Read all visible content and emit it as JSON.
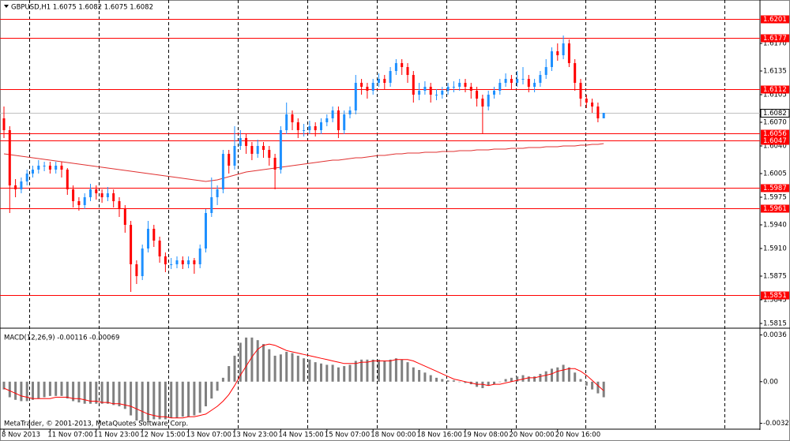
{
  "chart_data": [
    {
      "type": "candlestick",
      "title": "GBPUSD,H1  1.6075 1.6082 1.6075 1.6082",
      "categories": [
        "8 Nov 2013",
        null,
        null,
        null,
        null,
        null,
        null,
        null,
        "11 Nov 07:00",
        null,
        null,
        null,
        null,
        null,
        null,
        null,
        "11 Nov 23:00",
        null,
        null,
        null,
        null,
        null,
        null,
        null,
        "12 Nov 15:00",
        null,
        null,
        null,
        null,
        null,
        null,
        null,
        "13 Nov 07:00",
        null,
        null,
        null,
        null,
        null,
        null,
        null,
        "13 Nov 23:00",
        null,
        null,
        null,
        null,
        null,
        null,
        null,
        "14 Nov 15:00",
        null,
        null,
        null,
        null,
        null,
        null,
        null,
        "15 Nov 07:00",
        null,
        null,
        null,
        null,
        null,
        null,
        null,
        "18 Nov 00:00",
        null,
        null,
        null,
        null,
        null,
        null,
        null,
        "18 Nov 16:00",
        null,
        null,
        null,
        null,
        null,
        null,
        null,
        "19 Nov 08:00",
        null,
        null,
        null,
        null,
        null,
        null,
        null,
        "20 Nov 00:00",
        null,
        null,
        null,
        null,
        null,
        null,
        null,
        "20 Nov 16:00",
        null,
        null,
        null,
        null,
        null,
        null,
        null,
        null
      ],
      "open": [
        1.6075,
        1.606,
        1.599,
        1.5985,
        1.5995,
        1.6005,
        1.601,
        1.6015,
        1.6015,
        1.601,
        1.6015,
        1.601,
        1.5985,
        1.597,
        1.5965,
        1.5975,
        1.5985,
        1.598,
        1.5975,
        1.598,
        1.597,
        1.596,
        1.594,
        1.589,
        1.5875,
        1.591,
        1.5935,
        1.592,
        1.59,
        1.589,
        1.589,
        1.5895,
        1.589,
        1.5895,
        1.589,
        1.591,
        1.5955,
        1.5975,
        1.5985,
        1.603,
        1.6015,
        1.604,
        1.605,
        1.604,
        1.603,
        1.604,
        1.6035,
        1.6025,
        1.601,
        1.606,
        1.608,
        1.607,
        1.606,
        1.606,
        1.6065,
        1.606,
        1.607,
        1.6075,
        1.6085,
        1.606,
        1.608,
        1.6085,
        1.612,
        1.6115,
        1.611,
        1.612,
        1.6125,
        1.612,
        1.6135,
        1.6145,
        1.614,
        1.613,
        1.6105,
        1.611,
        1.6115,
        1.6105,
        1.6105,
        1.611,
        1.6115,
        1.6115,
        1.612,
        1.6115,
        1.611,
        1.61,
        1.609,
        1.6105,
        1.611,
        1.612,
        1.6125,
        1.612,
        1.6125,
        1.6125,
        1.6115,
        1.612,
        1.613,
        1.614,
        1.616,
        1.6155,
        1.617,
        1.6145,
        1.612,
        1.61,
        1.6095,
        1.609,
        1.6075
      ],
      "high": [
        1.609,
        1.6065,
        1.5998,
        1.6,
        1.601,
        1.6015,
        1.6022,
        1.602,
        1.602,
        1.602,
        1.602,
        1.6012,
        1.599,
        1.5975,
        1.598,
        1.5992,
        1.599,
        1.5985,
        1.5988,
        1.5985,
        1.5975,
        1.5965,
        1.5945,
        1.5895,
        1.5915,
        1.5945,
        1.594,
        1.5925,
        1.5905,
        1.5898,
        1.59,
        1.59,
        1.59,
        1.5898,
        1.5915,
        1.596,
        1.6,
        1.599,
        1.6035,
        1.6035,
        1.6065,
        1.606,
        1.6055,
        1.6045,
        1.6048,
        1.6045,
        1.604,
        1.603,
        1.6065,
        1.6095,
        1.6085,
        1.6075,
        1.6068,
        1.6072,
        1.607,
        1.6075,
        1.608,
        1.609,
        1.609,
        1.6085,
        1.609,
        1.613,
        1.6125,
        1.612,
        1.6125,
        1.6132,
        1.613,
        1.614,
        1.615,
        1.615,
        1.6145,
        1.6135,
        1.612,
        1.6122,
        1.612,
        1.6112,
        1.6115,
        1.612,
        1.6122,
        1.6125,
        1.6125,
        1.612,
        1.6115,
        1.6105,
        1.611,
        1.6115,
        1.6125,
        1.6132,
        1.613,
        1.6135,
        1.614,
        1.613,
        1.6125,
        1.6135,
        1.615,
        1.6165,
        1.617,
        1.618,
        1.6175,
        1.615,
        1.6125,
        1.6105,
        1.61,
        1.6095,
        1.6082
      ],
      "low": [
        1.605,
        1.5955,
        1.5975,
        1.598,
        1.599,
        1.6,
        1.6005,
        1.6008,
        1.6005,
        1.6005,
        1.6,
        1.5978,
        1.5962,
        1.5958,
        1.596,
        1.597,
        1.5972,
        1.5968,
        1.597,
        1.5962,
        1.595,
        1.593,
        1.5855,
        1.5865,
        1.587,
        1.5905,
        1.5912,
        1.5892,
        1.588,
        1.5884,
        1.5885,
        1.5884,
        1.5885,
        1.5878,
        1.5885,
        1.5905,
        1.595,
        1.5965,
        1.598,
        1.6005,
        1.601,
        1.6035,
        1.603,
        1.6022,
        1.6025,
        1.6025,
        1.6015,
        1.5985,
        1.6005,
        1.6055,
        1.606,
        1.605,
        1.6052,
        1.6055,
        1.6052,
        1.6055,
        1.6065,
        1.607,
        1.605,
        1.6055,
        1.6075,
        1.608,
        1.6105,
        1.61,
        1.6105,
        1.6115,
        1.6112,
        1.6115,
        1.613,
        1.613,
        1.612,
        1.6095,
        1.6098,
        1.6105,
        1.6095,
        1.6098,
        1.61,
        1.6105,
        1.6108,
        1.611,
        1.6108,
        1.61,
        1.609,
        1.6055,
        1.6085,
        1.61,
        1.6105,
        1.6115,
        1.6112,
        1.6115,
        1.6118,
        1.6108,
        1.6108,
        1.6115,
        1.6125,
        1.6135,
        1.6148,
        1.615,
        1.614,
        1.611,
        1.609,
        1.6088,
        1.6082,
        1.607,
        1.6075
      ],
      "close": [
        1.606,
        1.599,
        1.5985,
        1.5995,
        1.6005,
        1.601,
        1.6015,
        1.6015,
        1.601,
        1.6015,
        1.601,
        1.5985,
        1.597,
        1.5965,
        1.5975,
        1.5985,
        1.598,
        1.5975,
        1.598,
        1.597,
        1.596,
        1.594,
        1.589,
        1.5875,
        1.591,
        1.5935,
        1.592,
        1.59,
        1.589,
        1.589,
        1.5895,
        1.589,
        1.5895,
        1.589,
        1.591,
        1.5955,
        1.5975,
        1.5985,
        1.603,
        1.6015,
        1.604,
        1.605,
        1.604,
        1.603,
        1.604,
        1.6035,
        1.6025,
        1.601,
        1.606,
        1.608,
        1.607,
        1.606,
        1.606,
        1.6065,
        1.606,
        1.607,
        1.6075,
        1.6085,
        1.606,
        1.608,
        1.6085,
        1.612,
        1.6115,
        1.611,
        1.612,
        1.6125,
        1.612,
        1.6135,
        1.6145,
        1.614,
        1.613,
        1.6105,
        1.611,
        1.6115,
        1.6105,
        1.6105,
        1.611,
        1.6115,
        1.6115,
        1.612,
        1.6115,
        1.611,
        1.61,
        1.609,
        1.6105,
        1.611,
        1.612,
        1.6125,
        1.612,
        1.6125,
        1.6125,
        1.6115,
        1.612,
        1.613,
        1.614,
        1.616,
        1.6155,
        1.617,
        1.6145,
        1.612,
        1.61,
        1.6095,
        1.609,
        1.6075,
        1.6082
      ],
      "up_color": "#1e90ff",
      "down_color": "#ff0000",
      "ma": {
        "color": "#e03030",
        "values": [
          1.603,
          1.6029,
          1.6028,
          1.6027,
          1.6026,
          1.6025,
          1.6024,
          1.6023,
          1.6022,
          1.6021,
          1.602,
          1.6019,
          1.6018,
          1.6017,
          1.6016,
          1.6015,
          1.6014,
          1.6013,
          1.6012,
          1.6011,
          1.601,
          1.6009,
          1.6008,
          1.6007,
          1.6006,
          1.6005,
          1.6004,
          1.6003,
          1.6002,
          1.6001,
          1.6,
          1.5999,
          1.5998,
          1.5997,
          1.5996,
          1.5995,
          1.5996,
          1.5997,
          1.5999,
          1.6001,
          1.6003,
          1.6005,
          1.6007,
          1.6008,
          1.6009,
          1.601,
          1.6011,
          1.6012,
          1.6013,
          1.6014,
          1.6015,
          1.6016,
          1.6017,
          1.6018,
          1.6019,
          1.602,
          1.6021,
          1.6022,
          1.6022,
          1.6023,
          1.6024,
          1.6025,
          1.6025,
          1.6026,
          1.6027,
          1.6028,
          1.6028,
          1.6029,
          1.603,
          1.603,
          1.6031,
          1.6031,
          1.6031,
          1.6032,
          1.6032,
          1.6032,
          1.6033,
          1.6033,
          1.6033,
          1.6034,
          1.6034,
          1.6034,
          1.6035,
          1.6035,
          1.6035,
          1.6036,
          1.6036,
          1.6036,
          1.6037,
          1.6037,
          1.6037,
          1.6038,
          1.6038,
          1.6038,
          1.6039,
          1.6039,
          1.6039,
          1.604,
          1.604,
          1.604,
          1.6041,
          1.6041,
          1.6042,
          1.6042,
          1.6043
        ]
      },
      "levels": {
        "color": "#ff0000",
        "values": [
          1.6201,
          1.6177,
          1.6112,
          1.6056,
          1.6047,
          1.5987,
          1.5961,
          1.5851
        ]
      },
      "current": 1.6082,
      "ylim": [
        1.581,
        1.622
      ],
      "yticks": [
        {
          "value": 1.617,
          "label": "1.6170"
        },
        1.6135,
        1.6105,
        {
          "value": 1.607,
          "label": "1.6070"
        },
        {
          "value": 1.604,
          "label": "1.6040"
        },
        1.6005,
        1.5975,
        {
          "value": 1.594,
          "label": "1.5940"
        },
        {
          "value": 1.591,
          "label": "1.5910"
        },
        1.5875,
        1.5845,
        1.5815
      ]
    },
    {
      "type": "macd",
      "title": "MACD(12,26,9) -0.00116 -0.00069",
      "series": [
        {
          "color": "#808080",
          "values": [
            -0.0006,
            -0.0012,
            -0.0014,
            -0.0015,
            -0.0015,
            -0.0014,
            -0.0013,
            -0.0012,
            -0.0011,
            -0.0011,
            -0.0011,
            -0.0013,
            -0.0015,
            -0.0016,
            -0.0017,
            -0.0017,
            -0.0017,
            -0.0017,
            -0.0017,
            -0.0018,
            -0.0019,
            -0.0021,
            -0.0026,
            -0.003,
            -0.0031,
            -0.003,
            -0.0029,
            -0.0029,
            -0.0029,
            -0.0028,
            -0.0028,
            -0.0027,
            -0.0027,
            -0.0026,
            -0.0024,
            -0.0019,
            -0.0013,
            -0.0007,
            0.0003,
            0.0012,
            0.002,
            0.003,
            0.0034,
            0.0034,
            0.0032,
            0.0029,
            0.0025,
            0.002,
            0.0021,
            0.0023,
            0.0022,
            0.002,
            0.0018,
            0.0017,
            0.0015,
            0.0014,
            0.0013,
            0.0013,
            0.0011,
            0.0012,
            0.0013,
            0.0016,
            0.0017,
            0.0017,
            0.0017,
            0.0017,
            0.0016,
            0.0017,
            0.0018,
            0.0017,
            0.0015,
            0.0011,
            0.0009,
            0.0007,
            0.0005,
            0.0003,
            0.0002,
            0.0001,
            0.0001,
            0.0,
            -0.0001,
            -0.0002,
            -0.0004,
            -0.0005,
            -0.0003,
            -0.0002,
            0.0,
            0.0002,
            0.0003,
            0.0004,
            0.0005,
            0.0004,
            0.0004,
            0.0006,
            0.0008,
            0.001,
            0.0011,
            0.0013,
            0.0011,
            0.0007,
            0.0002,
            -0.0003,
            -0.0006,
            -0.0009,
            -0.0012
          ]
        },
        {
          "color": "#ff0000",
          "values": [
            -0.0005,
            -0.0007,
            -0.0009,
            -0.0011,
            -0.0012,
            -0.0013,
            -0.0013,
            -0.0013,
            -0.0013,
            -0.0012,
            -0.0012,
            -0.0012,
            -0.0013,
            -0.0013,
            -0.0014,
            -0.0015,
            -0.0015,
            -0.0016,
            -0.0016,
            -0.0017,
            -0.0017,
            -0.0018,
            -0.0019,
            -0.0021,
            -0.0023,
            -0.0025,
            -0.0026,
            -0.0027,
            -0.0027,
            -0.0028,
            -0.0028,
            -0.0028,
            -0.0027,
            -0.0027,
            -0.0026,
            -0.0025,
            -0.0022,
            -0.0019,
            -0.0015,
            -0.001,
            -0.0003,
            0.0005,
            0.0012,
            0.0019,
            0.0025,
            0.0028,
            0.0029,
            0.0028,
            0.0026,
            0.0024,
            0.0023,
            0.0022,
            0.0021,
            0.002,
            0.0019,
            0.0018,
            0.0017,
            0.0016,
            0.0015,
            0.0014,
            0.0014,
            0.0014,
            0.0015,
            0.0015,
            0.0016,
            0.0016,
            0.0016,
            0.0016,
            0.0017,
            0.0017,
            0.0017,
            0.0016,
            0.0014,
            0.0012,
            0.001,
            0.0008,
            0.0006,
            0.0004,
            0.0002,
            0.0001,
            0.0,
            -0.0001,
            -0.0002,
            -0.0002,
            -0.0003,
            -0.0002,
            -0.0002,
            -0.0001,
            0.0,
            0.0001,
            0.0002,
            0.0003,
            0.0003,
            0.0004,
            0.0005,
            0.0006,
            0.0008,
            0.0009,
            0.001,
            0.001,
            0.0008,
            0.0005,
            0.0001,
            -0.0003,
            -0.0007
          ]
        }
      ],
      "ylim": [
        -0.0036,
        0.004
      ],
      "yticks": [
        0.0036,
        {
          "value": 0,
          "label": "0.00"
        },
        -0.00321
      ]
    }
  ],
  "footer": "MetaTrader, © 2001-2013, MetaQuotes Software Corp."
}
